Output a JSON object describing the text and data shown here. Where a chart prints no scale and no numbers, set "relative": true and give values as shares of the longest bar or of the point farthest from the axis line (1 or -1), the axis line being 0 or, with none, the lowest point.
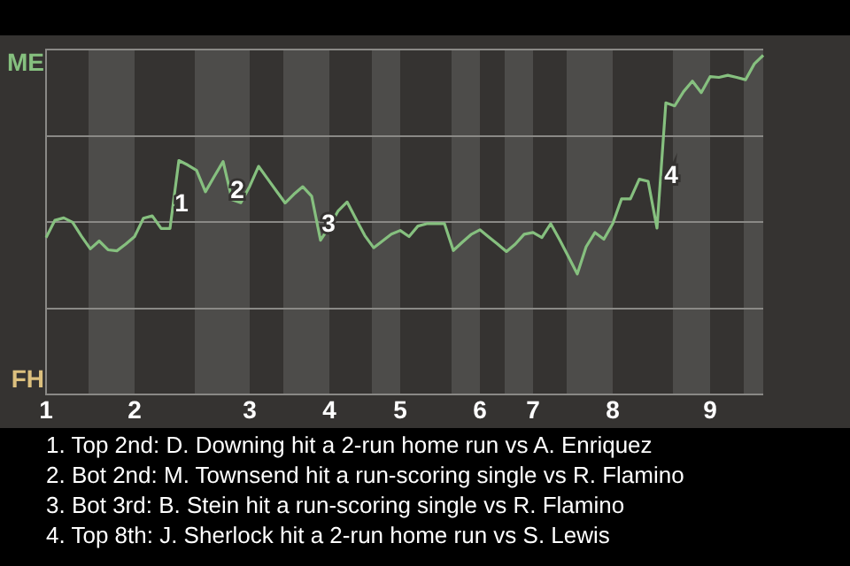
{
  "chart_data": {
    "type": "line",
    "relative": true,
    "categories": [
      "1",
      null,
      null,
      null,
      null,
      null,
      null,
      null,
      null,
      null,
      "2",
      null,
      null,
      null,
      null,
      null,
      null,
      null,
      null,
      null,
      null,
      null,
      null,
      "3",
      null,
      null,
      null,
      null,
      null,
      null,
      null,
      null,
      "4",
      null,
      null,
      null,
      null,
      null,
      null,
      null,
      "5",
      null,
      null,
      null,
      null,
      null,
      null,
      null,
      null,
      "6",
      null,
      null,
      null,
      null,
      null,
      "7",
      null,
      null,
      null,
      null,
      null,
      null,
      null,
      null,
      "8",
      null,
      null,
      null,
      null,
      null,
      null,
      null,
      null,
      null,
      null,
      "9",
      null,
      null,
      null,
      null,
      null,
      null
    ],
    "series": [
      {
        "color": "#86c07f",
        "values": [
          0.463,
          0.514,
          0.521,
          0.508,
          0.467,
          0.43,
          0.453,
          0.427,
          0.424,
          0.444,
          0.466,
          0.52,
          0.527,
          0.49,
          0.49,
          0.69,
          0.677,
          0.661,
          0.598,
          0.643,
          0.687,
          0.575,
          0.566,
          0.614,
          0.673,
          0.637,
          0.601,
          0.565,
          0.591,
          0.613,
          0.585,
          0.455,
          0.495,
          0.542,
          0.568,
          0.518,
          0.469,
          0.433,
          0.453,
          0.473,
          0.484,
          0.466,
          0.497,
          0.504,
          0.504,
          0.504,
          0.425,
          0.449,
          0.472,
          0.486,
          0.465,
          0.444,
          0.422,
          0.444,
          0.473,
          0.478,
          0.463,
          0.504,
          0.457,
          0.407,
          0.356,
          0.436,
          0.478,
          0.458,
          0.504,
          0.577,
          0.577,
          0.635,
          0.629,
          0.491,
          0.86,
          0.851,
          0.893,
          0.924,
          0.89,
          0.937,
          0.935,
          0.941,
          0.935,
          0.928,
          0.975,
          1
        ]
      }
    ],
    "grid": "y",
    "marker": "none",
    "annotations": [
      "ME",
      "FH",
      "1",
      "2",
      "3",
      "4",
      "1. Top 2nd: D. Downing hit a 2-run home run vs A. Enriquez",
      "2. Bot 2nd: M. Townsend hit a run-scoring single vs R. Flamino",
      "3. Bot 3rd: B. Stein hit a run-scoring single vs R. Flamino",
      "4. Top 8th: J. Sherlock hit a 2-run home run vs S. Lewis"
    ]
  }
}
